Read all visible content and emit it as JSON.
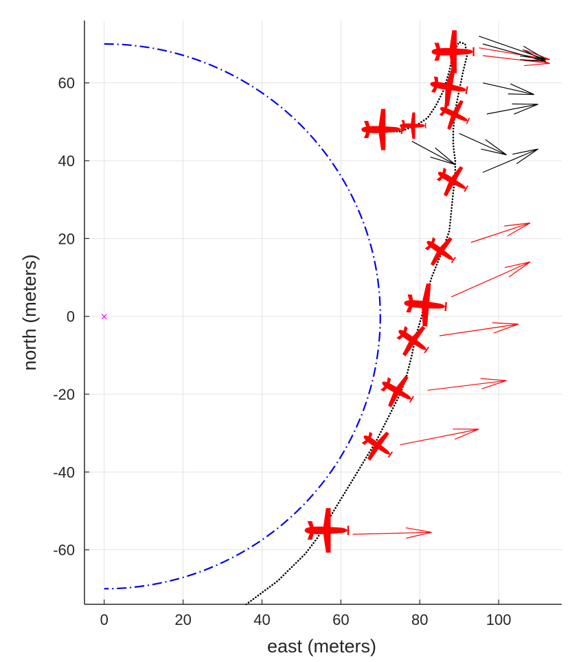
{
  "chart_data": {
    "type": "scatter",
    "title": "",
    "xlabel": "east (meters)",
    "ylabel": "north (meters)",
    "xlim": [
      -5,
      116
    ],
    "ylim": [
      -74,
      76
    ],
    "grid": true,
    "xticks": [
      0,
      20,
      40,
      60,
      80,
      100
    ],
    "yticks": [
      -60,
      -40,
      -20,
      0,
      20,
      40,
      60
    ],
    "xtick_labels": [
      "0",
      "20",
      "40",
      "60",
      "80",
      "100"
    ],
    "ytick_labels": [
      "-60",
      "-40",
      "-20",
      "0",
      "20",
      "40",
      "60"
    ],
    "colors": {
      "circle": "#0000ee",
      "origin": "#ff00ff",
      "aircraft": "#ff0000",
      "arrow_red": "#ff0000",
      "arrow_black": "#000000",
      "path": "#000000",
      "grid": "#e3e3e3",
      "axis": "#262626"
    },
    "origin_marker": {
      "x": 0,
      "y": 0,
      "symbol": "×"
    },
    "loiter_circle": {
      "center": [
        0,
        0
      ],
      "radius": 70,
      "from_deg": -90,
      "to_deg": 90,
      "style": "dash-dot"
    },
    "path": [
      [
        36,
        -74
      ],
      [
        40,
        -71
      ],
      [
        44,
        -68
      ],
      [
        48,
        -64
      ],
      [
        51,
        -61
      ],
      [
        54,
        -57
      ],
      [
        57,
        -52
      ],
      [
        60,
        -47
      ],
      [
        63,
        -42
      ],
      [
        66,
        -37
      ],
      [
        69,
        -32
      ],
      [
        71,
        -28
      ],
      [
        73,
        -24
      ],
      [
        75,
        -20
      ],
      [
        76.5,
        -16
      ],
      [
        78,
        -10
      ],
      [
        79,
        -5
      ],
      [
        80.5,
        0
      ],
      [
        81.5,
        5
      ],
      [
        83,
        10
      ],
      [
        85,
        15
      ],
      [
        86.5,
        19
      ],
      [
        87.5,
        22
      ],
      [
        88,
        27
      ],
      [
        88.5,
        32
      ],
      [
        89,
        36
      ],
      [
        89,
        40
      ],
      [
        88.5,
        44
      ],
      [
        88.5,
        48
      ],
      [
        89,
        53
      ],
      [
        90,
        58
      ],
      [
        91,
        63
      ],
      [
        92,
        67
      ],
      [
        91.5,
        70
      ],
      [
        90,
        70.5
      ],
      [
        88.5,
        68
      ],
      [
        87.5,
        63
      ],
      [
        86,
        58
      ],
      [
        84,
        54
      ],
      [
        82,
        51
      ],
      [
        79,
        49
      ],
      [
        75,
        47.5
      ],
      [
        71,
        47.5
      ],
      [
        67,
        48
      ]
    ],
    "aircraft": [
      {
        "x": 56,
        "y": -55,
        "heading_deg": 90,
        "scale": 1.35
      },
      {
        "x": 69,
        "y": -33,
        "heading_deg": 125,
        "scale": 1.0
      },
      {
        "x": 74,
        "y": -19,
        "heading_deg": 120,
        "scale": 1.05
      },
      {
        "x": 78,
        "y": -6,
        "heading_deg": 125,
        "scale": 1.05
      },
      {
        "x": 81,
        "y": 3,
        "heading_deg": 95,
        "scale": 1.3
      },
      {
        "x": 85,
        "y": 17,
        "heading_deg": 125,
        "scale": 1.0
      },
      {
        "x": 88,
        "y": 35,
        "heading_deg": 120,
        "scale": 1.0
      },
      {
        "x": 88.5,
        "y": 52,
        "heading_deg": 115,
        "scale": 0.95
      },
      {
        "x": 78,
        "y": 49,
        "heading_deg": 90,
        "scale": 0.8
      },
      {
        "x": 70,
        "y": 48,
        "heading_deg": 90,
        "scale": 1.25
      },
      {
        "x": 87,
        "y": 59,
        "heading_deg": 100,
        "scale": 1.15
      },
      {
        "x": 88,
        "y": 68,
        "heading_deg": 90,
        "scale": 1.3
      }
    ],
    "arrows": [
      {
        "from": [
          63,
          -56
        ],
        "to": [
          83,
          -55.5
        ],
        "color": "red"
      },
      {
        "from": [
          75,
          -33
        ],
        "to": [
          95,
          -29
        ],
        "color": "red"
      },
      {
        "from": [
          82,
          -19
        ],
        "to": [
          102,
          -16.5
        ],
        "color": "red"
      },
      {
        "from": [
          85,
          -5
        ],
        "to": [
          105,
          -2
        ],
        "color": "red"
      },
      {
        "from": [
          88,
          5
        ],
        "to": [
          108,
          14
        ],
        "color": "red"
      },
      {
        "from": [
          93,
          19
        ],
        "to": [
          108,
          24
        ],
        "color": "red"
      },
      {
        "from": [
          95,
          69
        ],
        "to": [
          113,
          66
        ],
        "color": "red"
      },
      {
        "from": [
          96,
          67
        ],
        "to": [
          113,
          65
        ],
        "color": "red"
      },
      {
        "from": [
          78,
          45
        ],
        "to": [
          89,
          39
        ],
        "color": "black"
      },
      {
        "from": [
          90,
          47
        ],
        "to": [
          102,
          41.5
        ],
        "color": "black"
      },
      {
        "from": [
          96,
          37
        ],
        "to": [
          110,
          43
        ],
        "color": "black"
      },
      {
        "from": [
          96,
          60
        ],
        "to": [
          109,
          57
        ],
        "color": "black"
      },
      {
        "from": [
          97,
          52
        ],
        "to": [
          110,
          54.5
        ],
        "color": "black"
      },
      {
        "from": [
          95,
          72
        ],
        "to": [
          112,
          66
        ],
        "color": "black"
      },
      {
        "from": [
          96,
          70
        ],
        "to": [
          112,
          65.5
        ],
        "color": "black"
      }
    ]
  }
}
